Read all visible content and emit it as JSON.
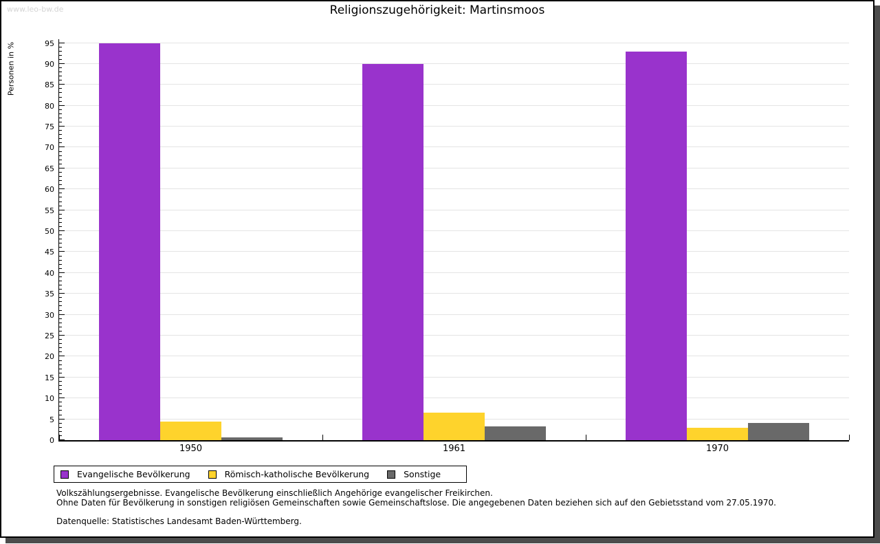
{
  "watermark": "www.leo-bw.de",
  "title": "Religionszugehörigkeit: Martinsmoos",
  "chart_data": {
    "type": "bar",
    "title": "Religionszugehörigkeit: Martinsmoos",
    "xlabel": "",
    "ylabel": "Personen in %",
    "ylim": [
      0,
      95
    ],
    "y_major_step": 5,
    "y_minor_step": 1,
    "grid": true,
    "legend_position": "bottom",
    "categories": [
      "1950",
      "1961",
      "1970"
    ],
    "series": [
      {
        "name": "Evangelische Bevölkerung",
        "color": "#9933cc",
        "values": [
          95.0,
          90.0,
          92.9
        ]
      },
      {
        "name": "Römisch-katholische Bevölkerung",
        "color": "#fed32c",
        "values": [
          4.5,
          6.6,
          2.9
        ]
      },
      {
        "name": "Sonstige",
        "color": "#696969",
        "values": [
          0.6,
          3.3,
          4.2
        ]
      }
    ]
  },
  "footnotes": {
    "line1": "Volkszählungsergebnisse. Evangelische Bevölkerung einschließlich Angehörige evangelischer Freikirchen.",
    "line2": "Ohne Daten für Bevölkerung in sonstigen religiösen Gemeinschaften sowie Gemeinschaftslose. Die angegebenen Daten beziehen sich auf den Gebietsstand vom 27.05.1970.",
    "source": "Datenquelle: Statistisches Landesamt Baden-Württemberg."
  }
}
